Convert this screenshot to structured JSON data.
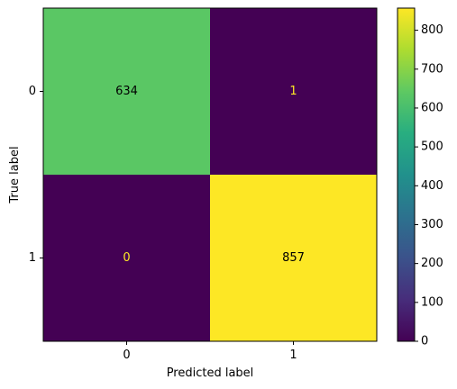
{
  "chart_data": {
    "type": "heatmap",
    "title": "",
    "xlabel": "Predicted label",
    "ylabel": "True label",
    "x_categories": [
      "0",
      "1"
    ],
    "y_categories": [
      "0",
      "1"
    ],
    "values": [
      [
        634,
        1
      ],
      [
        0,
        857
      ]
    ],
    "colorbar": {
      "colormap": "viridis",
      "range": [
        0,
        857
      ],
      "ticks": [
        0,
        100,
        200,
        300,
        400,
        500,
        600,
        700,
        800
      ]
    },
    "grid": false,
    "text_colors": {
      "light_cell": "#000000",
      "dark_cell": "#fde725"
    }
  }
}
